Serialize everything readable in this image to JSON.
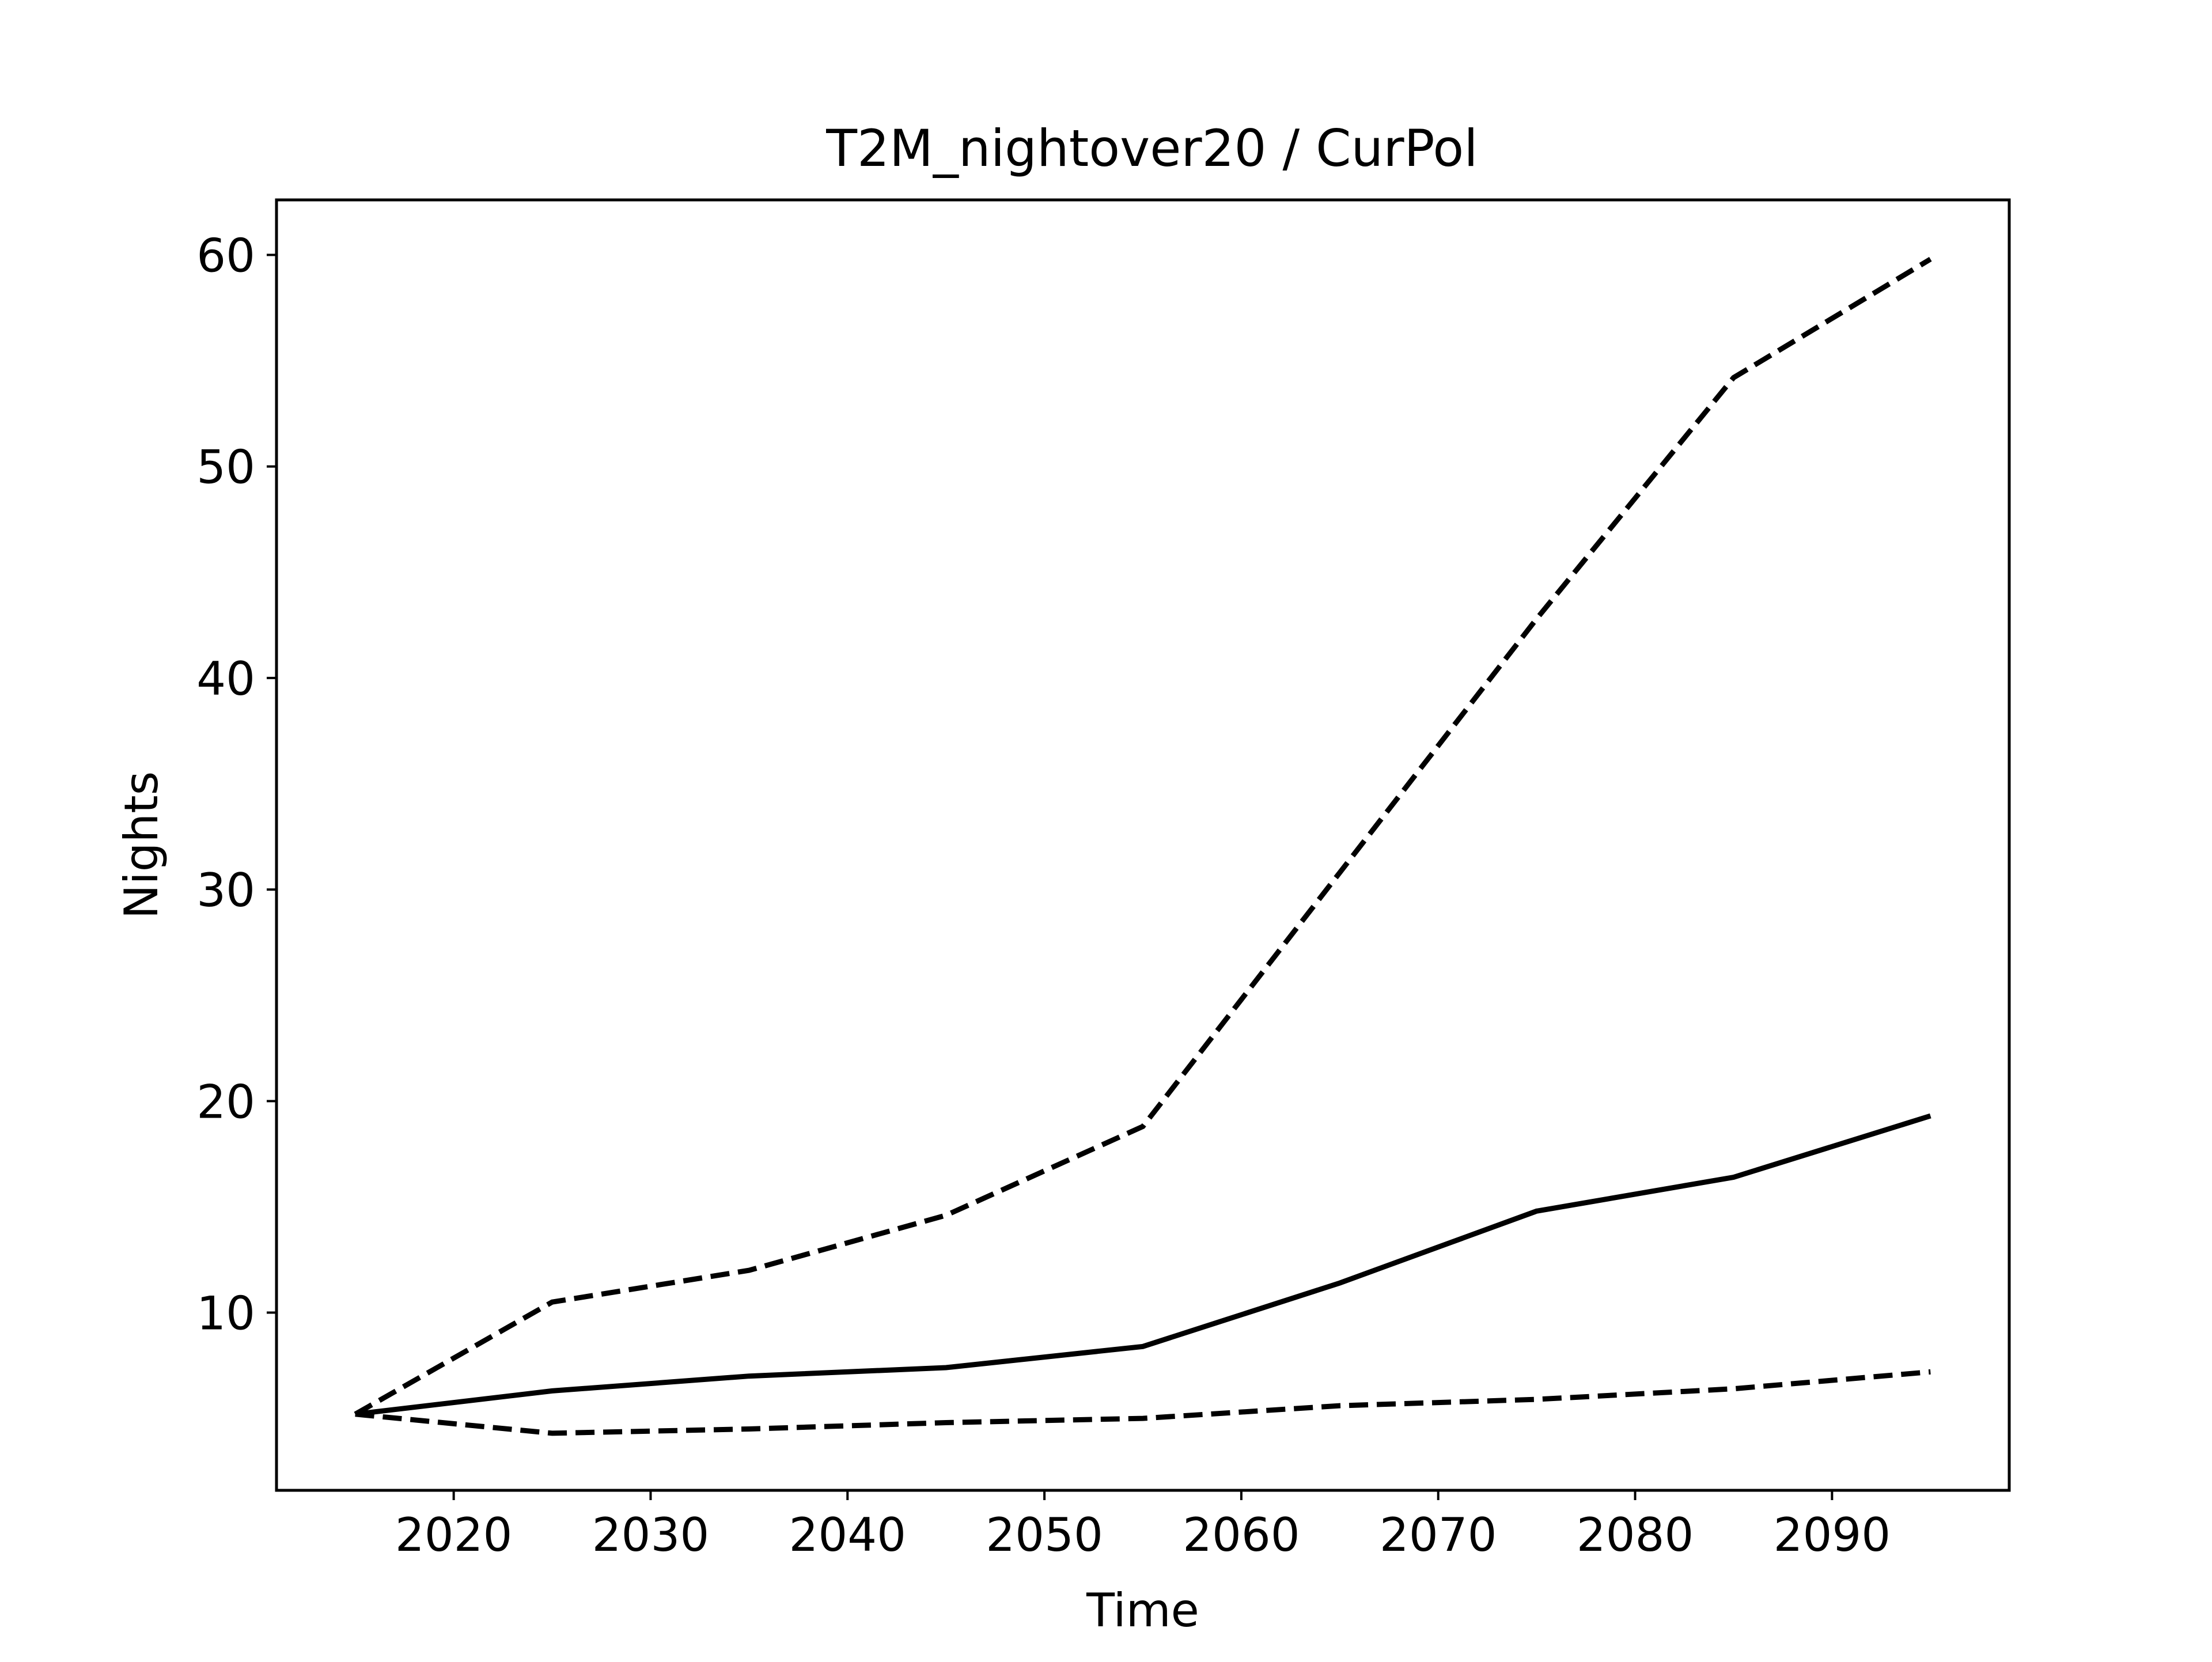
{
  "chart_data": {
    "type": "line",
    "title": "T2M_nightover20 / CurPol",
    "xlabel": "Time",
    "ylabel": "Nights",
    "xlim": [
      2011,
      2099
    ],
    "ylim": [
      1.6,
      62.6
    ],
    "xticks": [
      2020,
      2030,
      2040,
      2050,
      2060,
      2070,
      2080,
      2090
    ],
    "yticks": [
      10,
      20,
      30,
      40,
      50,
      60
    ],
    "grid": false,
    "x": [
      2015,
      2025,
      2035,
      2045,
      2055,
      2065,
      2075,
      2085,
      2095
    ],
    "series": [
      {
        "style": "dashed",
        "color": "#000000",
        "values": [
          5.2,
          10.5,
          12.0,
          14.6,
          18.8,
          30.8,
          42.8,
          54.2,
          59.8
        ]
      },
      {
        "style": "solid",
        "color": "#000000",
        "values": [
          5.2,
          6.3,
          7.0,
          7.4,
          8.4,
          11.4,
          14.8,
          16.4,
          19.3
        ]
      },
      {
        "style": "dashed",
        "color": "#000000",
        "values": [
          5.2,
          4.3,
          4.5,
          4.8,
          5.0,
          5.6,
          5.9,
          6.4,
          7.2
        ]
      }
    ]
  }
}
